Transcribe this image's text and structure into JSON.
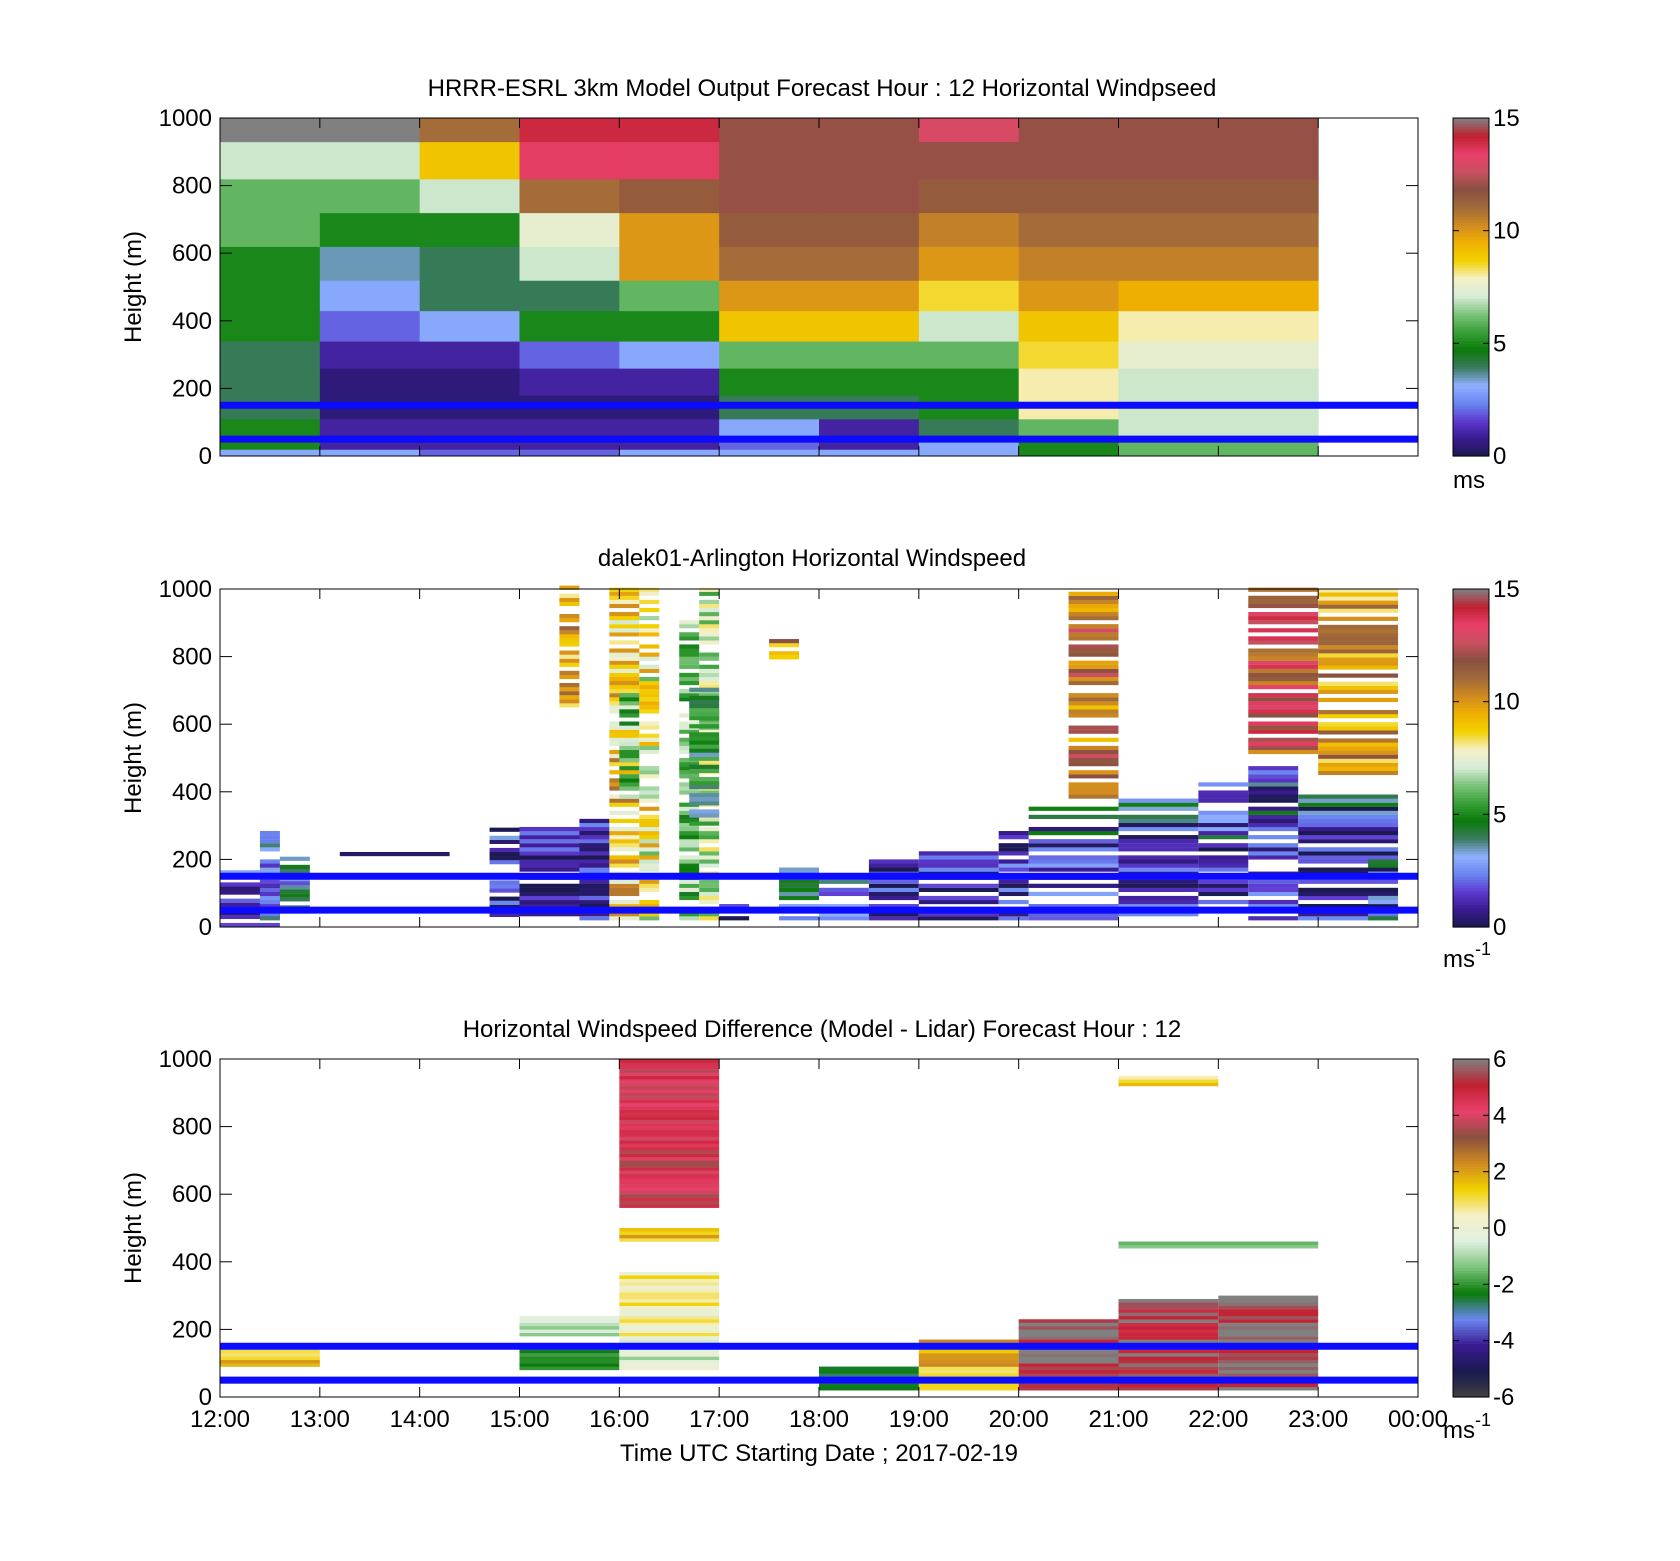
{
  "figure": {
    "xlabel": "Time UTC  Starting Date ; 2017-02-19",
    "x_ticks": [
      "12:00",
      "13:00",
      "14:00",
      "15:00",
      "16:00",
      "17:00",
      "18:00",
      "19:00",
      "20:00",
      "21:00",
      "22:00",
      "23:00",
      "00:00"
    ]
  },
  "colors": {
    "overlay_line": "#0b0bff",
    "colormap_speed": [
      "#1a1a50",
      "#3a1a90",
      "#5e3ad0",
      "#6a86f0",
      "#8fb0ff",
      "#3a7a5c",
      "#0a7a0a",
      "#3aa03a",
      "#7cc47c",
      "#d8ecd8",
      "#f5f0c8",
      "#f2d200",
      "#f0b000",
      "#d08a20",
      "#a06a3a",
      "#8a5040",
      "#c85060",
      "#e8406a",
      "#c02030",
      "#808080"
    ],
    "colormap_diff": [
      "#404040",
      "#1a1a50",
      "#3a1a90",
      "#6a86f0",
      "#0a7a0a",
      "#7cc47c",
      "#e0f0e0",
      "#f5f0c8",
      "#f2d200",
      "#d08a20",
      "#8a5040",
      "#e8406a",
      "#c02030",
      "#808080"
    ]
  },
  "chart_data": [
    {
      "type": "heatmap",
      "title": "HRRR-ESRL 3km Model Output   Forecast Hour : 12 Horizontal Windpseed",
      "ylabel": "Height (m)",
      "ylim": [
        0,
        1000
      ],
      "y_ticks": [
        "0",
        "200",
        "400",
        "600",
        "800",
        "1000"
      ],
      "xlim_hours": [
        12,
        24
      ],
      "colorbar": {
        "ticks": [
          "0",
          "5",
          "10",
          "15"
        ],
        "range": [
          0,
          15
        ],
        "unit": "ms"
      },
      "overlay_lines_m": [
        150,
        50
      ],
      "hours": [
        12,
        13,
        14,
        15,
        16,
        17,
        18,
        19,
        20,
        21,
        22
      ],
      "levels_m": [
        0,
        20,
        50,
        110,
        180,
        260,
        340,
        430,
        520,
        620,
        720,
        820,
        930,
        1000
      ],
      "values": [
        [
          3,
          3,
          2,
          2,
          3,
          3,
          3,
          3,
          5,
          6,
          6
        ],
        [
          5,
          1,
          1,
          1,
          1,
          2,
          1,
          3,
          5,
          6,
          6
        ],
        [
          5,
          1,
          1,
          1,
          1,
          3,
          1,
          4,
          6,
          7,
          7
        ],
        [
          4,
          0.5,
          0.5,
          0.5,
          0.5,
          4,
          4,
          5,
          8,
          7,
          7
        ],
        [
          4,
          0.5,
          0.5,
          1,
          1,
          5,
          5,
          5,
          8,
          7,
          7
        ],
        [
          4,
          1,
          1,
          2,
          3,
          6,
          6,
          6,
          8.5,
          7.5,
          7.5
        ],
        [
          5,
          2,
          3,
          5,
          5,
          9,
          9,
          7,
          9,
          8,
          8
        ],
        [
          5,
          3,
          4,
          4,
          6,
          10,
          10,
          8.5,
          10,
          9.5,
          9.5
        ],
        [
          5,
          3.5,
          4,
          7,
          10,
          11,
          11,
          10,
          10.5,
          10.5,
          10.5
        ],
        [
          6,
          5,
          5,
          7.5,
          10,
          11.5,
          11.5,
          10.5,
          11,
          11,
          11
        ],
        [
          6,
          6,
          7,
          11,
          11.5,
          12,
          12,
          11.5,
          11.5,
          11.5,
          11.5
        ],
        [
          7,
          7,
          9,
          13.5,
          13.5,
          12,
          12,
          12,
          12,
          12,
          12
        ],
        [
          15,
          15,
          11,
          14,
          14,
          12,
          12,
          13,
          12,
          12,
          12
        ]
      ]
    },
    {
      "type": "heatmap",
      "title": "dalek01-Arlington  Horizontal Windspeed",
      "ylabel": "Height (m)",
      "ylim": [
        0,
        1000
      ],
      "y_ticks": [
        "0",
        "200",
        "400",
        "600",
        "800",
        "1000"
      ],
      "xlim_hours": [
        12,
        24
      ],
      "colorbar": {
        "ticks": [
          "0",
          "5",
          "10",
          "15"
        ],
        "range": [
          0,
          15
        ],
        "unit": "ms-1"
      },
      "overlay_lines_m": [
        150,
        50
      ]
    },
    {
      "type": "heatmap",
      "title": "Horizontal Windspeed Difference (Model - Lidar) Forecast Hour : 12",
      "ylabel": "Height (m)",
      "ylim": [
        0,
        1000
      ],
      "y_ticks": [
        "0",
        "200",
        "400",
        "600",
        "800",
        "1000"
      ],
      "xlim_hours": [
        12,
        24
      ],
      "colorbar": {
        "ticks": [
          "-6",
          "-4",
          "-2",
          "0",
          "2",
          "4",
          "6"
        ],
        "range": [
          -6,
          6
        ],
        "unit": "ms-1"
      },
      "overlay_lines_m": [
        150,
        50
      ]
    }
  ]
}
